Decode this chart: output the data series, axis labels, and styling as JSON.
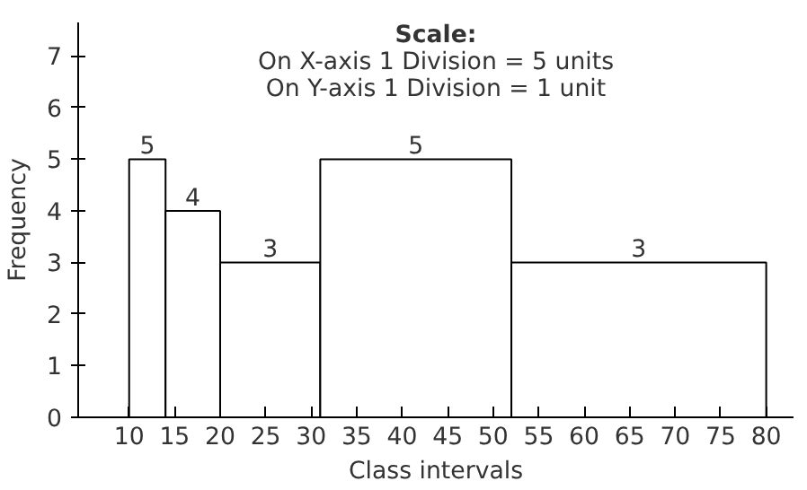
{
  "chart_data": {
    "type": "histogram",
    "title": "Scale:",
    "annotations": [
      "On X-axis 1 Division = 5 units",
      "On Y-axis 1 Division = 1 unit"
    ],
    "xlabel": "Class intervals",
    "ylabel": "Frequency",
    "bins": [
      10,
      14,
      20,
      31,
      52,
      80
    ],
    "values": [
      5,
      4,
      3,
      5,
      3
    ],
    "color": "#ffffff",
    "data_labels": true,
    "xlim": [
      4.4,
      83
    ],
    "ylim": [
      0,
      7.65
    ],
    "xticks": [
      10,
      15,
      20,
      25,
      30,
      35,
      40,
      45,
      50,
      55,
      60,
      65,
      70,
      75,
      80
    ],
    "yticks": [
      0,
      1,
      2,
      3,
      4,
      5,
      6,
      7
    ],
    "grid": false
  }
}
